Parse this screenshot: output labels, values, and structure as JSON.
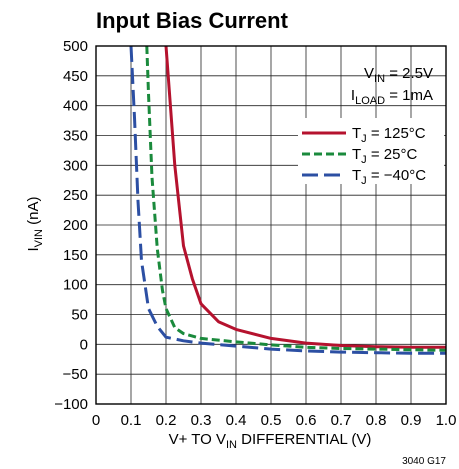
{
  "chart_data": {
    "type": "line",
    "title": "Input Bias Current",
    "xlabel": {
      "main": "V+ TO V",
      "sub": "IN",
      "rest": " DIFFERENTIAL (V)"
    },
    "ylabel": {
      "main": "I",
      "sub": "VIN",
      "rest": " (nA)"
    },
    "xlim": [
      0,
      1.0
    ],
    "ylim": [
      -100,
      500
    ],
    "grid": true,
    "x_ticks": [
      "0",
      "0.1",
      "0.2",
      "0.3",
      "0.4",
      "0.5",
      "0.6",
      "0.7",
      "0.8",
      "0.9",
      "1.0"
    ],
    "y_ticks": [
      "500",
      "450",
      "400",
      "350",
      "300",
      "250",
      "200",
      "150",
      "100",
      "50",
      "0",
      "−50",
      "−100"
    ],
    "conditions": [
      {
        "main": "V",
        "sub": "IN",
        "rest": " = 2.5V"
      },
      {
        "main": "I",
        "sub": "LOAD",
        "rest": " = 1mA"
      }
    ],
    "legend_position": "top-right",
    "series": [
      {
        "name": {
          "main": "T",
          "sub": "J",
          "rest": " = 125°C"
        },
        "color": "#b5122e",
        "style": "solid",
        "x": [
          0.2,
          0.225,
          0.25,
          0.275,
          0.3,
          0.35,
          0.4,
          0.5,
          0.6,
          0.7,
          0.8,
          0.9,
          1.0
        ],
        "y": [
          500,
          300,
          165,
          110,
          68,
          38,
          25,
          10,
          2,
          -2,
          -4,
          -5,
          -5
        ]
      },
      {
        "name": {
          "main": "T",
          "sub": "J",
          "rest": " = 25°C"
        },
        "color": "#1a8a3c",
        "style": "dashed",
        "x": [
          0.145,
          0.15,
          0.16,
          0.175,
          0.19,
          0.2,
          0.225,
          0.25,
          0.3,
          0.4,
          0.5,
          0.6,
          0.7,
          0.8,
          0.9,
          1.0
        ],
        "y": [
          500,
          420,
          280,
          160,
          90,
          60,
          28,
          18,
          10,
          4,
          -1,
          -5,
          -7,
          -8,
          -9,
          -10
        ]
      },
      {
        "name": {
          "main": "T",
          "sub": "J",
          "rest": " = −40°C"
        },
        "color": "#2c4fa3",
        "style": "long-dashed",
        "x": [
          0.1,
          0.11,
          0.12,
          0.13,
          0.15,
          0.175,
          0.2,
          0.25,
          0.3,
          0.4,
          0.5,
          0.6,
          0.7,
          0.8,
          0.9,
          1.0
        ],
        "y": [
          500,
          380,
          240,
          140,
          60,
          30,
          12,
          6,
          2,
          -3,
          -8,
          -11,
          -13,
          -14,
          -15,
          -15
        ]
      }
    ],
    "figure_id": "3040 G17"
  }
}
